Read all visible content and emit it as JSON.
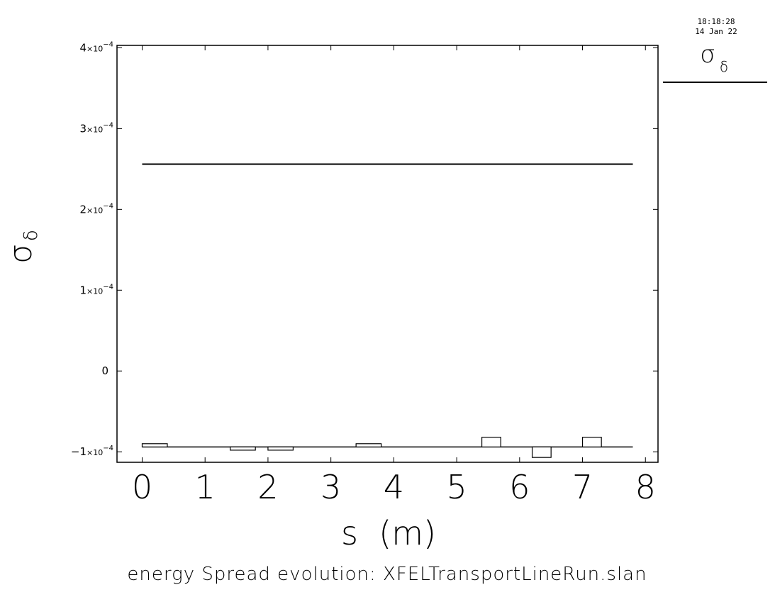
{
  "timestamp": {
    "time": "18:18:28",
    "date": "14 Jan 22"
  },
  "legend": {
    "label": "σ",
    "subscript": "δ"
  },
  "chart_data": {
    "type": "line",
    "title": "energy Spread evolution: XFELTransportLineRun.slan",
    "xlabel": "s  (m)",
    "ylabel": {
      "main": "σ",
      "subscript": "δ"
    },
    "xlim": [
      -0.4,
      8.2
    ],
    "ylim": [
      -0.000113,
      0.000403
    ],
    "x_ticks": [
      "0",
      "1",
      "2",
      "3",
      "4",
      "5",
      "6",
      "7",
      "8"
    ],
    "x_tick_values": [
      0,
      1,
      2,
      3,
      4,
      5,
      6,
      7,
      8
    ],
    "y_ticks": [
      {
        "value": 0.0004,
        "mantissa": "4",
        "exp": "−4"
      },
      {
        "value": 0.0003,
        "mantissa": "3",
        "exp": "−4"
      },
      {
        "value": 0.0002,
        "mantissa": "2",
        "exp": "−4"
      },
      {
        "value": 0.0001,
        "mantissa": "1",
        "exp": "−4"
      },
      {
        "value": 0,
        "mantissa": "0",
        "exp": ""
      },
      {
        "value": -0.0001,
        "mantissa": "−1",
        "exp": "−4"
      }
    ],
    "series": [
      {
        "name": "σδ",
        "x": [
          0,
          7.8
        ],
        "y": [
          0.000256,
          0.000256
        ]
      }
    ],
    "lattice_profile": {
      "baseline": -9.4e-05,
      "elements": [
        {
          "s_start": 0.0,
          "s_end": 0.4,
          "top": -9e-05,
          "bottom": -9.4e-05
        },
        {
          "s_start": 1.4,
          "s_end": 1.8,
          "top": -9.4e-05,
          "bottom": -9.8e-05
        },
        {
          "s_start": 2.0,
          "s_end": 2.4,
          "top": -9.4e-05,
          "bottom": -9.8e-05
        },
        {
          "s_start": 3.4,
          "s_end": 3.8,
          "top": -9e-05,
          "bottom": -9.4e-05
        },
        {
          "s_start": 5.4,
          "s_end": 5.7,
          "top": -8.2e-05,
          "bottom": -9.4e-05
        },
        {
          "s_start": 6.2,
          "s_end": 6.5,
          "top": -9.4e-05,
          "bottom": -0.000107
        },
        {
          "s_start": 7.0,
          "s_end": 7.3,
          "top": -8.2e-05,
          "bottom": -9.4e-05
        }
      ]
    },
    "grid": false,
    "legend_position": "top-right outside"
  }
}
